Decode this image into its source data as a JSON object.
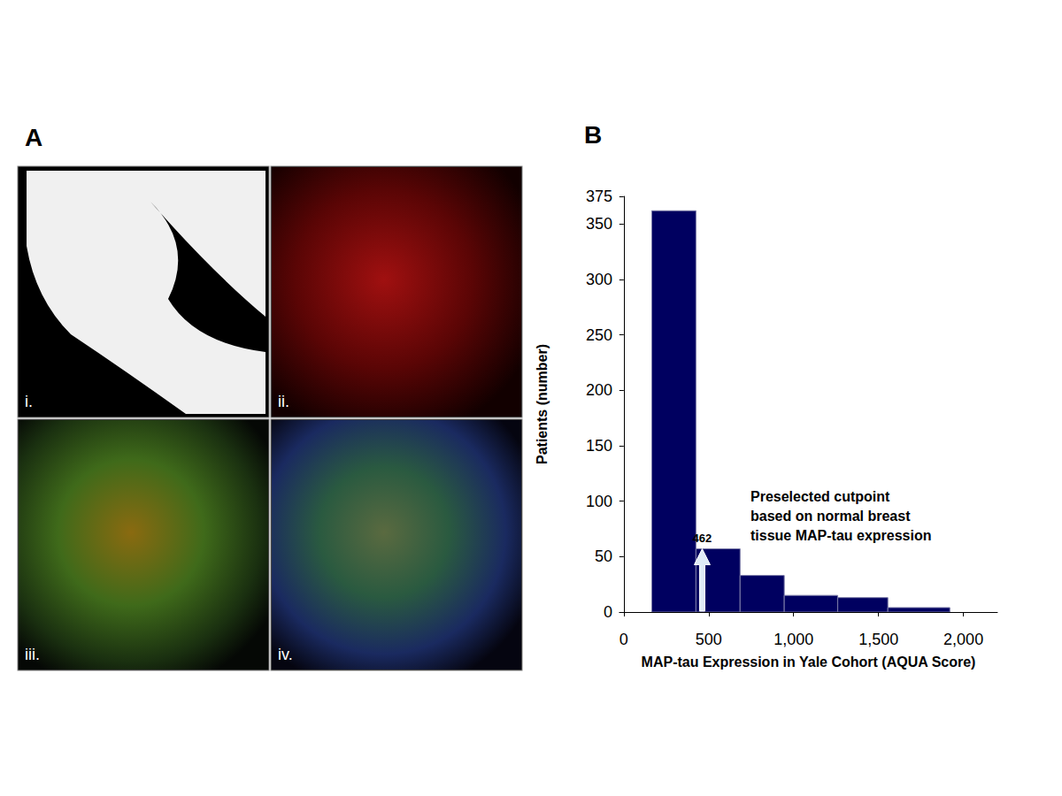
{
  "panel_a": {
    "label": "A",
    "images": [
      "i.",
      "ii.",
      "iii.",
      "iv."
    ]
  },
  "chart_data": {
    "type": "histogram",
    "panel_label": "B",
    "bins": [
      165,
      425,
      685,
      945,
      1260,
      1555,
      1920
    ],
    "values": [
      362,
      57,
      33,
      15,
      13,
      4
    ],
    "color": "#000060",
    "xlabel": "MAP-tau Expression in Yale Cohort (AQUA Score)",
    "ylabel": "Patients (number)",
    "xlim": [
      -25,
      2200
    ],
    "xticks": [
      0,
      500,
      1000,
      1500,
      2000
    ],
    "ylim": [
      0,
      375
    ],
    "yticks": [
      0,
      50,
      100,
      150,
      200,
      250,
      300,
      350
    ],
    "grid": false,
    "annotations": [
      {
        "x": 462,
        "text": "Preselected cutpoint\nbased on normal breast\ntissue MAP-tau expression"
      }
    ]
  }
}
